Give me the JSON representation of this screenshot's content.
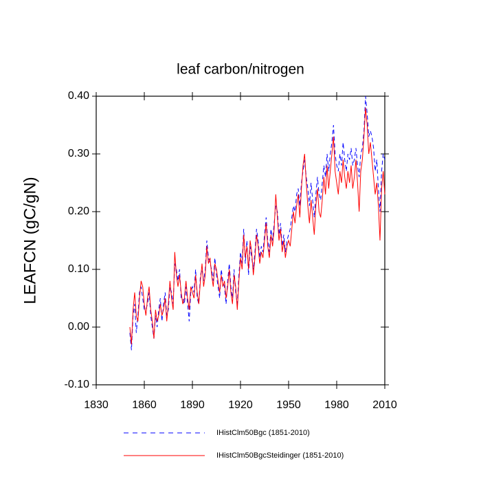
{
  "chart_data": {
    "type": "line",
    "title": "leaf carbon/nitrogen",
    "y_label": "LEAFCN  (gC/gN)",
    "x": [
      1851,
      1852,
      1853,
      1854,
      1855,
      1856,
      1857,
      1858,
      1859,
      1860,
      1861,
      1862,
      1863,
      1864,
      1865,
      1866,
      1867,
      1868,
      1869,
      1870,
      1871,
      1872,
      1873,
      1874,
      1875,
      1876,
      1877,
      1878,
      1879,
      1880,
      1881,
      1882,
      1883,
      1884,
      1885,
      1886,
      1887,
      1888,
      1889,
      1890,
      1891,
      1892,
      1893,
      1894,
      1895,
      1896,
      1897,
      1898,
      1899,
      1900,
      1901,
      1902,
      1903,
      1904,
      1905,
      1906,
      1907,
      1908,
      1909,
      1910,
      1911,
      1912,
      1913,
      1914,
      1915,
      1916,
      1917,
      1918,
      1919,
      1920,
      1921,
      1922,
      1923,
      1924,
      1925,
      1926,
      1927,
      1928,
      1929,
      1930,
      1931,
      1932,
      1933,
      1934,
      1935,
      1936,
      1937,
      1938,
      1939,
      1940,
      1941,
      1942,
      1943,
      1944,
      1945,
      1946,
      1947,
      1948,
      1949,
      1950,
      1951,
      1952,
      1953,
      1954,
      1955,
      1956,
      1957,
      1958,
      1959,
      1960,
      1961,
      1962,
      1963,
      1964,
      1965,
      1966,
      1967,
      1968,
      1969,
      1970,
      1971,
      1972,
      1973,
      1974,
      1975,
      1976,
      1977,
      1978,
      1979,
      1980,
      1981,
      1982,
      1983,
      1984,
      1985,
      1986,
      1987,
      1988,
      1989,
      1990,
      1991,
      1992,
      1993,
      1994,
      1995,
      1996,
      1997,
      1998,
      1999,
      2000,
      2001,
      2002,
      2003,
      2004,
      2005,
      2006,
      2007,
      2008,
      2009,
      2010
    ],
    "series": [
      {
        "name": "IHistClm50Bgc (1851-2010)",
        "color": "#0000ff",
        "dash": true,
        "values": [
          -0.01,
          -0.04,
          0.02,
          0.04,
          -0.01,
          0.02,
          0.06,
          0.07,
          0.05,
          0.03,
          0.03,
          0.04,
          0.06,
          0.02,
          0.0,
          -0.02,
          0.02,
          0.0,
          0.03,
          0.05,
          0.01,
          0.04,
          0.06,
          0.02,
          0.03,
          0.07,
          0.06,
          0.04,
          0.11,
          0.1,
          0.08,
          0.1,
          0.05,
          0.05,
          0.04,
          0.07,
          0.04,
          0.01,
          0.06,
          0.07,
          0.06,
          0.1,
          0.05,
          0.04,
          0.09,
          0.1,
          0.08,
          0.1,
          0.15,
          0.12,
          0.11,
          0.1,
          0.08,
          0.12,
          0.09,
          0.07,
          0.05,
          0.1,
          0.08,
          0.07,
          0.04,
          0.08,
          0.11,
          0.07,
          0.05,
          0.1,
          0.06,
          0.04,
          0.09,
          0.13,
          0.11,
          0.17,
          0.11,
          0.15,
          0.09,
          0.14,
          0.12,
          0.1,
          0.13,
          0.17,
          0.15,
          0.12,
          0.14,
          0.13,
          0.16,
          0.19,
          0.15,
          0.13,
          0.17,
          0.15,
          0.18,
          0.21,
          0.2,
          0.16,
          0.18,
          0.14,
          0.16,
          0.13,
          0.15,
          0.16,
          0.17,
          0.19,
          0.21,
          0.2,
          0.23,
          0.24,
          0.21,
          0.25,
          0.27,
          0.29,
          0.26,
          0.24,
          0.21,
          0.25,
          0.22,
          0.19,
          0.23,
          0.26,
          0.23,
          0.22,
          0.25,
          0.28,
          0.26,
          0.3,
          0.27,
          0.3,
          0.32,
          0.35,
          0.3,
          0.28,
          0.27,
          0.3,
          0.28,
          0.32,
          0.29,
          0.27,
          0.3,
          0.29,
          0.31,
          0.28,
          0.29,
          0.31,
          0.28,
          0.26,
          0.3,
          0.31,
          0.34,
          0.4,
          0.37,
          0.33,
          0.34,
          0.33,
          0.31,
          0.27,
          0.29,
          0.24,
          0.2,
          0.27,
          0.3,
          0.29
        ]
      },
      {
        "name": "IHistClm50BgcSteidinger (1851-2010)",
        "color": "#ff0000",
        "dash": false,
        "values": [
          0.0,
          -0.03,
          0.03,
          0.06,
          0.02,
          0.01,
          0.05,
          0.08,
          0.07,
          0.04,
          0.02,
          0.05,
          0.07,
          0.03,
          0.01,
          -0.02,
          0.03,
          0.01,
          0.02,
          0.04,
          0.02,
          0.03,
          0.05,
          0.01,
          0.04,
          0.08,
          0.05,
          0.03,
          0.13,
          0.09,
          0.07,
          0.09,
          0.06,
          0.04,
          0.05,
          0.08,
          0.05,
          0.03,
          0.07,
          0.06,
          0.05,
          0.09,
          0.06,
          0.04,
          0.08,
          0.11,
          0.07,
          0.09,
          0.14,
          0.11,
          0.12,
          0.09,
          0.07,
          0.11,
          0.1,
          0.08,
          0.06,
          0.09,
          0.07,
          0.08,
          0.05,
          0.07,
          0.1,
          0.06,
          0.04,
          0.09,
          0.07,
          0.03,
          0.08,
          0.12,
          0.1,
          0.16,
          0.12,
          0.14,
          0.1,
          0.15,
          0.13,
          0.09,
          0.12,
          0.16,
          0.14,
          0.11,
          0.13,
          0.12,
          0.15,
          0.18,
          0.14,
          0.12,
          0.16,
          0.14,
          0.17,
          0.23,
          0.19,
          0.15,
          0.17,
          0.13,
          0.15,
          0.12,
          0.14,
          0.15,
          0.14,
          0.17,
          0.2,
          0.18,
          0.21,
          0.23,
          0.19,
          0.24,
          0.28,
          0.3,
          0.25,
          0.21,
          0.18,
          0.22,
          0.19,
          0.16,
          0.21,
          0.24,
          0.2,
          0.19,
          0.22,
          0.26,
          0.23,
          0.28,
          0.24,
          0.27,
          0.3,
          0.33,
          0.27,
          0.25,
          0.23,
          0.27,
          0.25,
          0.29,
          0.26,
          0.24,
          0.27,
          0.25,
          0.28,
          0.24,
          0.26,
          0.29,
          0.25,
          0.2,
          0.27,
          0.29,
          0.33,
          0.38,
          0.35,
          0.3,
          0.32,
          0.29,
          0.26,
          0.23,
          0.25,
          0.21,
          0.15,
          0.24,
          0.27,
          0.23
        ]
      }
    ],
    "xlim": [
      1830,
      2010
    ],
    "xticks": [
      1830,
      1860,
      1890,
      1920,
      1950,
      1980,
      2010
    ],
    "ylim": [
      -0.1,
      0.4
    ],
    "yticks": [
      {
        "value": -0.1,
        "label": "-0.10"
      },
      {
        "value": 0,
        "label": "0.00"
      },
      {
        "value": 0.1,
        "label": "0.10"
      },
      {
        "value": 0.2,
        "label": "0.20"
      },
      {
        "value": 0.3,
        "label": "0.30"
      },
      {
        "value": 0.4,
        "label": "0.40"
      }
    ]
  }
}
